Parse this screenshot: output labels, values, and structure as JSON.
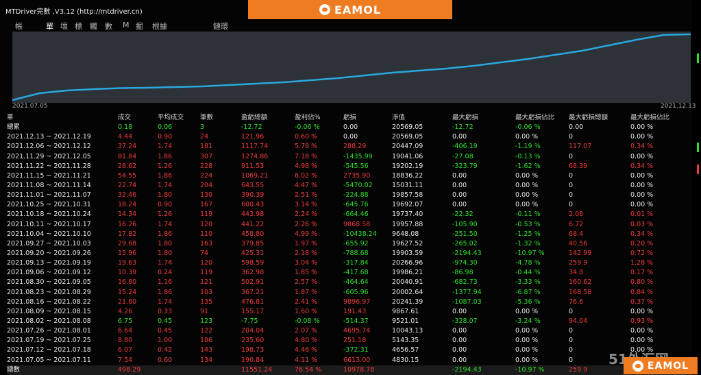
{
  "window": {
    "title": "MTDriver完數 ,V3.12 (http://mtdriver.cn)"
  },
  "brand": {
    "text": "EAMOL",
    "watermark": "51外汇网"
  },
  "menu": {
    "items": [
      {
        "label": "帳",
        "active": false
      },
      {
        "label": "單",
        "active": true
      },
      {
        "label": "壞",
        "active": false
      },
      {
        "label": "標",
        "active": false
      },
      {
        "label": "觸",
        "active": false
      },
      {
        "label": "數",
        "active": false
      },
      {
        "label": "M",
        "active": false
      },
      {
        "label": "掘",
        "active": false
      },
      {
        "label": "根據",
        "active": false
      },
      {
        "label": "鏈環",
        "active": false
      }
    ]
  },
  "chart": {
    "start_label": "2021.07.05",
    "end_label": "2021.12.13",
    "line_color": "#29a8e0"
  },
  "chart_data": {
    "type": "line",
    "series": [
      {
        "values": [
          0,
          10,
          14,
          16,
          17.5,
          18,
          19,
          20,
          22,
          24,
          26,
          29,
          32,
          36,
          40,
          43,
          46,
          50,
          55,
          60,
          66,
          72,
          80,
          88,
          95,
          96
        ]
      }
    ]
  },
  "table": {
    "headers": [
      "單",
      "成交",
      "平均成交",
      "筆數",
      "盈虧總額",
      "盈利佔%",
      "虧損",
      "淨值",
      "最大虧損",
      "最大虧損佔比",
      "最大虧損總額",
      "最大虧損佔比"
    ],
    "summary": {
      "label": "總累",
      "cells": [
        {
          "v": "0.18",
          "c": "g"
        },
        {
          "v": "0.06",
          "c": "g"
        },
        {
          "v": "3",
          "c": "g"
        },
        {
          "v": "-12.72",
          "c": "g"
        },
        {
          "v": "-0.06 %",
          "c": "g"
        },
        {
          "v": "0.00",
          "c": "w"
        },
        {
          "v": "20569.05",
          "c": "w"
        },
        {
          "v": "-12.72",
          "c": "g"
        },
        {
          "v": "-0.06 %",
          "c": "g"
        },
        {
          "v": "0.00",
          "c": "w"
        },
        {
          "v": "0.00 %",
          "c": "w"
        }
      ]
    },
    "rows": [
      {
        "period": "2021.12.13 ~ 2021.12.19",
        "c": "r",
        "cells": [
          "4.44",
          "0.90",
          "24",
          "121.96",
          "0.60 %",
          "0.00",
          "20569.05",
          "0.00",
          "0.00 %",
          "0",
          "0.00 %"
        ],
        "cc": [
          "r",
          "r",
          "r",
          "r",
          "r",
          "w",
          "w",
          "w",
          "w",
          "w",
          "w"
        ]
      },
      {
        "period": "2021.12.06 ~ 2021.12.12",
        "c": "r",
        "cells": [
          "37.24",
          "1.74",
          "181",
          "1117.74",
          "5.78 %",
          "288.29",
          "20447.09",
          "-406.19",
          "-1.19 %",
          "117.07",
          "0.34 %"
        ],
        "cc": [
          "r",
          "r",
          "r",
          "r",
          "r",
          "r",
          "w",
          "g",
          "g",
          "r",
          "r"
        ]
      },
      {
        "period": "2021.11.29 ~ 2021.12.05",
        "c": "r",
        "cells": [
          "81.84",
          "1.86",
          "307",
          "1274.86",
          "7.18 %",
          "-1435.99",
          "19041.06",
          "-27.08",
          "-0.13 %",
          "0",
          "0.00 %"
        ],
        "cc": [
          "r",
          "r",
          "r",
          "r",
          "r",
          "g",
          "w",
          "g",
          "g",
          "w",
          "w"
        ]
      },
      {
        "period": "2021.11.22 ~ 2021.11.28",
        "c": "r",
        "cells": [
          "28.62",
          "1.26",
          "228",
          "911.53",
          "4.98 %",
          "-545.56",
          "19202.19",
          "-323.79",
          "-1.62 %",
          "68.39",
          "0.34 %"
        ],
        "cc": [
          "r",
          "r",
          "r",
          "r",
          "r",
          "g",
          "w",
          "g",
          "g",
          "r",
          "r"
        ]
      },
      {
        "period": "2021.11.15 ~ 2021.11.21",
        "c": "r",
        "cells": [
          "54.55",
          "1.86",
          "224",
          "1069.21",
          "6.02 %",
          "2735.90",
          "18836.22",
          "0.00",
          "0.00 %",
          "0",
          "0.00 %"
        ],
        "cc": [
          "r",
          "r",
          "r",
          "r",
          "r",
          "r",
          "w",
          "w",
          "w",
          "w",
          "w"
        ]
      },
      {
        "period": "2021.11.08 ~ 2021.11.14",
        "c": "r",
        "cells": [
          "22.74",
          "1.74",
          "204",
          "643.55",
          "4.47 %",
          "-5470.02",
          "15031.11",
          "0.00",
          "0.00 %",
          "0",
          "0.00 %"
        ],
        "cc": [
          "r",
          "r",
          "r",
          "r",
          "r",
          "g",
          "w",
          "w",
          "w",
          "w",
          "w"
        ]
      },
      {
        "period": "2021.11.01 ~ 2021.11.07",
        "c": "r",
        "cells": [
          "32.46",
          "1.80",
          "130",
          "390.39",
          "2.51 %",
          "-224.88",
          "19857.58",
          "0.00",
          "0.00 %",
          "0",
          "0.00 %"
        ],
        "cc": [
          "r",
          "r",
          "r",
          "r",
          "r",
          "g",
          "w",
          "w",
          "w",
          "w",
          "w"
        ]
      },
      {
        "period": "2021.10.25 ~ 2021.10.31",
        "c": "r",
        "cells": [
          "18.24",
          "0.90",
          "167",
          "600.43",
          "3.14 %",
          "-645.76",
          "19692.07",
          "0.00",
          "0.00 %",
          "0",
          "0.00 %"
        ],
        "cc": [
          "r",
          "r",
          "r",
          "r",
          "r",
          "g",
          "w",
          "w",
          "w",
          "w",
          "w"
        ]
      },
      {
        "period": "2021.10.18 ~ 2021.10.24",
        "c": "r",
        "cells": [
          "14.34",
          "1.26",
          "119",
          "443.98",
          "2.24 %",
          "-664.46",
          "19737.40",
          "-22.32",
          "-0.11 %",
          "2.08",
          "0.01 %"
        ],
        "cc": [
          "r",
          "r",
          "r",
          "r",
          "r",
          "g",
          "w",
          "g",
          "g",
          "r",
          "r"
        ]
      },
      {
        "period": "2021.10.11 ~ 2021.10.17",
        "c": "r",
        "cells": [
          "16.26",
          "1.74",
          "120",
          "441.22",
          "2.26 %",
          "9868.58",
          "19957.88",
          "-105.90",
          "-0.53 %",
          "6.72",
          "0.03 %"
        ],
        "cc": [
          "r",
          "r",
          "r",
          "r",
          "r",
          "r",
          "w",
          "g",
          "g",
          "r",
          "r"
        ]
      },
      {
        "period": "2021.10.04 ~ 2021.10.10",
        "c": "r",
        "cells": [
          "17.82",
          "1.86",
          "110",
          "458.80",
          "4.99 %",
          "-10438.24",
          "9648.08",
          "-251.50",
          "-1.25 %",
          "68.4",
          "0.34 %"
        ],
        "cc": [
          "r",
          "r",
          "r",
          "r",
          "r",
          "g",
          "w",
          "g",
          "g",
          "r",
          "r"
        ]
      },
      {
        "period": "2021.09.27 ~ 2021.10.03",
        "c": "r",
        "cells": [
          "29.68",
          "1.80",
          "163",
          "379.85",
          "1.97 %",
          "-655.92",
          "19627.52",
          "-265.02",
          "-1.32 %",
          "40.56",
          "0.20 %"
        ],
        "cc": [
          "r",
          "r",
          "r",
          "r",
          "r",
          "g",
          "w",
          "g",
          "g",
          "r",
          "r"
        ]
      },
      {
        "period": "2021.09.20 ~ 2021.09.26",
        "c": "r",
        "cells": [
          "15.96",
          "1.80",
          "74",
          "425.31",
          "2.18 %",
          "-788.68",
          "19903.59",
          "-2194.43",
          "-10.97 %",
          "142.99",
          "0.72 %"
        ],
        "cc": [
          "r",
          "r",
          "r",
          "r",
          "r",
          "g",
          "w",
          "g",
          "g",
          "r",
          "r"
        ]
      },
      {
        "period": "2021.09.13 ~ 2021.09.19",
        "c": "r",
        "cells": [
          "19.63",
          "1.74",
          "120",
          "598.59",
          "3.04 %",
          "-317.84",
          "20266.96",
          "-974.30",
          "-4.78 %",
          "259.9",
          "1.28 %"
        ],
        "cc": [
          "r",
          "r",
          "r",
          "r",
          "r",
          "g",
          "w",
          "g",
          "g",
          "r",
          "r"
        ]
      },
      {
        "period": "2021.09.06 ~ 2021.09.12",
        "c": "r",
        "cells": [
          "10.39",
          "0.24",
          "119",
          "362.98",
          "1.85 %",
          "-417.68",
          "19986.21",
          "-86.98",
          "-0.44 %",
          "34.8",
          "0.17 %"
        ],
        "cc": [
          "r",
          "r",
          "r",
          "r",
          "r",
          "g",
          "w",
          "g",
          "g",
          "r",
          "r"
        ]
      },
      {
        "period": "2021.08.30 ~ 2021.09.05",
        "c": "r",
        "cells": [
          "16.80",
          "1.16",
          "121",
          "502.91",
          "2.57 %",
          "-464.64",
          "20040.91",
          "-682.73",
          "-3.33 %",
          "160.62",
          "0.80 %"
        ],
        "cc": [
          "r",
          "r",
          "r",
          "r",
          "r",
          "g",
          "w",
          "g",
          "g",
          "r",
          "r"
        ]
      },
      {
        "period": "2021.08.23 ~ 2021.08.29",
        "c": "r",
        "cells": [
          "15.24",
          "1.86",
          "103",
          "367.21",
          "1.87 %",
          "-605.96",
          "20002.64",
          "-1377.94",
          "-6.87 %",
          "168.58",
          "0.84 %"
        ],
        "cc": [
          "r",
          "r",
          "r",
          "r",
          "r",
          "g",
          "w",
          "g",
          "g",
          "r",
          "r"
        ]
      },
      {
        "period": "2021.08.16 ~ 2021.08.22",
        "c": "r",
        "cells": [
          "21.80",
          "1.74",
          "135",
          "476.81",
          "2.41 %",
          "9896.97",
          "20241.39",
          "-1087.03",
          "-5.36 %",
          "76.6",
          "0.37 %"
        ],
        "cc": [
          "r",
          "r",
          "r",
          "r",
          "r",
          "r",
          "w",
          "g",
          "g",
          "r",
          "r"
        ]
      },
      {
        "period": "2021.08.09 ~ 2021.08.15",
        "c": "r",
        "cells": [
          "4.26",
          "0.33",
          "91",
          "155.17",
          "1.60 %",
          "191.43",
          "9867.61",
          "0.00",
          "0.00 %",
          "0",
          "0.00 %"
        ],
        "cc": [
          "r",
          "r",
          "r",
          "r",
          "r",
          "r",
          "w",
          "w",
          "w",
          "w",
          "w"
        ]
      },
      {
        "period": "2021.08.02 ~ 2021.08.08",
        "c": "g",
        "cells": [
          "6.75",
          "0.45",
          "123",
          "-7.75",
          "-0.08 %",
          "-514.37",
          "9521.01",
          "-328.07",
          "-3.24 %",
          "94.04",
          "0.93 %"
        ],
        "cc": [
          "g",
          "g",
          "g",
          "g",
          "g",
          "g",
          "w",
          "g",
          "g",
          "r",
          "r"
        ]
      },
      {
        "period": "2021.07.26 ~ 2021.08.01",
        "c": "r",
        "cells": [
          "6.64",
          "0.45",
          "122",
          "204.04",
          "2.07 %",
          "4695.74",
          "10043.13",
          "0.00",
          "0.00 %",
          "0",
          "0.00 %"
        ],
        "cc": [
          "r",
          "r",
          "r",
          "r",
          "r",
          "r",
          "w",
          "w",
          "w",
          "w",
          "w"
        ]
      },
      {
        "period": "2021.07.19 ~ 2021.07.25",
        "c": "r",
        "cells": [
          "8.80",
          "1.00",
          "186",
          "235.60",
          "4.80 %",
          "251.18",
          "5143.35",
          "0.00",
          "0.00 %",
          "0",
          "0.00 %"
        ],
        "cc": [
          "r",
          "r",
          "r",
          "r",
          "r",
          "r",
          "w",
          "w",
          "w",
          "w",
          "w"
        ]
      },
      {
        "period": "2021.07.12 ~ 2021.07.18",
        "c": "r",
        "cells": [
          "6.07",
          "0.42",
          "143",
          "198.73",
          "4.46 %",
          "-372.31",
          "4656.57",
          "0.00",
          "0.00 %",
          "0",
          "0.00 %"
        ],
        "cc": [
          "r",
          "r",
          "r",
          "r",
          "r",
          "g",
          "w",
          "w",
          "w",
          "w",
          "w"
        ]
      },
      {
        "period": "2021.07.05 ~ 2021.07.11",
        "c": "r",
        "cells": [
          "7.54",
          "0.60",
          "134",
          "190.84",
          "4.11 %",
          "6613.00",
          "4830.15",
          "0.00",
          "0.00 %",
          "0",
          "0.00 %"
        ],
        "cc": [
          "r",
          "r",
          "r",
          "r",
          "r",
          "r",
          "w",
          "w",
          "w",
          "w",
          "w"
        ]
      }
    ],
    "footer": {
      "label": "總數",
      "cells": [
        {
          "v": "498.29",
          "c": "r",
          "col": 1
        },
        {
          "v": "11551.24",
          "c": "r",
          "col": 4
        },
        {
          "v": "76.54 %",
          "c": "r",
          "col": 5
        },
        {
          "v": "10978.78",
          "c": "r",
          "col": 6
        },
        {
          "v": "-2194.43",
          "c": "g",
          "col": 8
        },
        {
          "v": "-10.97 %",
          "c": "g",
          "col": 9
        },
        {
          "v": "259.9",
          "c": "r",
          "col": 10
        }
      ]
    }
  }
}
